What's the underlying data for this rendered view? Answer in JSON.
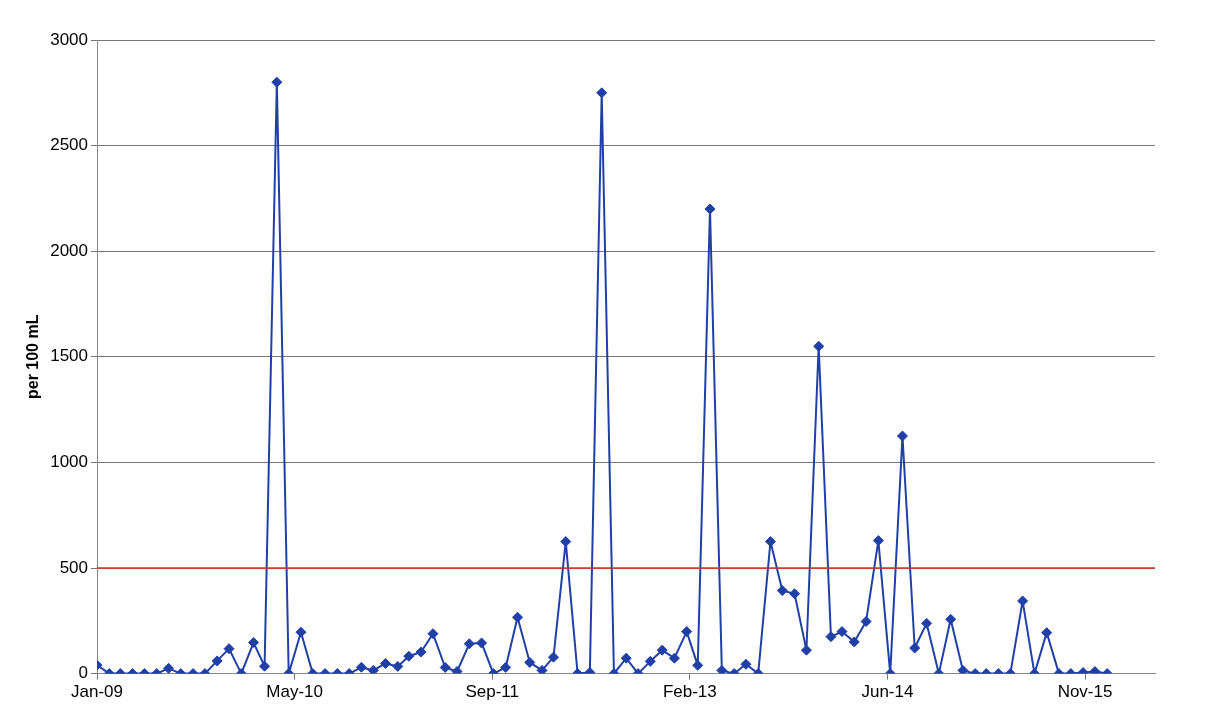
{
  "chart_data": {
    "type": "line",
    "ylabel": "per 100 mL",
    "x": [
      "2009-01",
      "2009-02",
      "2009-03",
      "2009-04",
      "2009-05",
      "2009-06",
      "2009-07",
      "2009-08",
      "2009-09",
      "2009-10",
      "2009-11",
      "2009-12",
      "2010-01",
      "2010-02",
      "2010-03",
      "2010-04",
      "2010-05",
      "2010-06",
      "2010-07",
      "2010-08",
      "2010-09",
      "2010-10",
      "2010-11",
      "2010-12",
      "2011-01",
      "2011-02",
      "2011-03",
      "2011-04",
      "2011-05",
      "2011-06",
      "2011-07",
      "2011-08",
      "2011-09",
      "2011-10",
      "2011-11",
      "2011-12",
      "2012-01",
      "2012-02",
      "2012-03",
      "2012-04",
      "2012-05",
      "2012-06",
      "2012-07",
      "2012-08",
      "2012-09",
      "2012-10",
      "2012-11",
      "2012-12",
      "2013-01",
      "2013-02",
      "2013-03",
      "2013-04",
      "2013-05",
      "2013-06",
      "2013-07",
      "2013-08",
      "2013-09",
      "2013-10",
      "2013-11",
      "2013-12",
      "2014-01",
      "2014-02",
      "2014-03",
      "2014-04",
      "2014-05",
      "2014-06",
      "2014-07",
      "2014-08",
      "2014-09",
      "2014-10",
      "2014-11",
      "2014-12",
      "2015-01",
      "2015-02",
      "2015-03",
      "2015-04",
      "2015-05",
      "2015-06",
      "2015-07",
      "2015-08",
      "2015-09",
      "2015-10",
      "2015-11",
      "2015-12",
      "2016-01"
    ],
    "series": [
      {
        "color": "#2040a8",
        "values": [
          40,
          0,
          0,
          0,
          0,
          0,
          25,
          0,
          0,
          0,
          60,
          118,
          0,
          147,
          35,
          2800,
          0,
          196,
          0,
          0,
          0,
          0,
          30,
          15,
          48,
          34,
          82,
          102,
          189,
          29,
          10,
          141,
          145,
          0,
          29,
          267,
          53,
          15,
          78,
          625,
          0,
          5,
          2750,
          0,
          73,
          0,
          58,
          111,
          73,
          199,
          39,
          2200,
          15,
          0,
          44,
          0,
          625,
          393,
          378,
          111,
          1550,
          175,
          199,
          150,
          247,
          630,
          0,
          1125,
          121,
          238,
          0,
          257,
          15,
          0,
          0,
          0,
          0,
          344,
          0,
          194,
          0,
          0,
          5,
          10,
          0
        ]
      }
    ],
    "xlim": [
      "2009-01-01",
      "2016-05-01"
    ],
    "xticks": [
      {
        "value": "2009-01-01",
        "label": "Jan-09"
      },
      {
        "value": "2010-05-16",
        "label": "May-10"
      },
      {
        "value": "2011-09-28",
        "label": "Sep-11"
      },
      {
        "value": "2013-02-09",
        "label": "Feb-13"
      },
      {
        "value": "2014-06-24",
        "label": "Jun-14"
      },
      {
        "value": "2015-11-06",
        "label": "Nov-15"
      }
    ],
    "ylim": [
      0,
      3000
    ],
    "yticks": [
      0,
      500,
      1000,
      1500,
      2000,
      2500,
      3000
    ],
    "ref_lines": [
      {
        "axis": "y",
        "value": 500,
        "color": "#e03020"
      }
    ],
    "grid": "y",
    "legend": false,
    "marker": "diamond",
    "line_style": "solid"
  }
}
